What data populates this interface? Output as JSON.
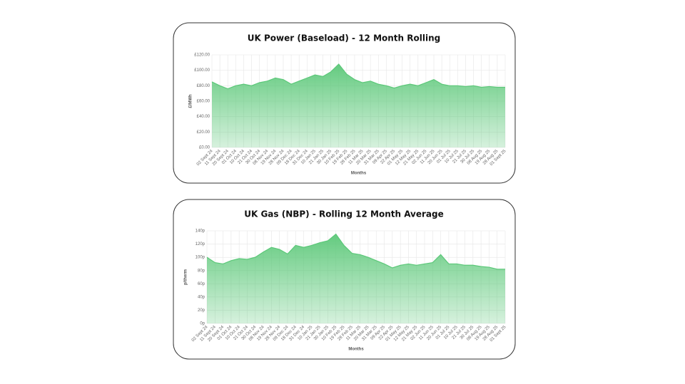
{
  "chart_data": [
    {
      "type": "area",
      "title": "UK Power (Baseload) - 12 Month Rolling",
      "x_label": "Months",
      "y_label": "£/MWh",
      "color": "#5cc879",
      "grid": true,
      "categories": [
        "02 Sept 24",
        "11 Sept 24",
        "20 Sept 24",
        "01 Oct 24",
        "10 Oct 24",
        "21 Oct 24",
        "30 Oct 24",
        "08 Nov 24",
        "19 Nov 24",
        "28 Nov 24",
        "09 Dec 24",
        "18 Dec 24",
        "31 Dec 24",
        "10 Jan 25",
        "21 Jan 25",
        "30 Jan 25",
        "10 Feb 25",
        "19 Feb 25",
        "28 Feb 25",
        "11 Mar 25",
        "20 Mar 25",
        "31 Mar 25",
        "09 Apr 25",
        "22 Apr 25",
        "01 May 25",
        "12 May 25",
        "21 May 25",
        "02 Jun 25",
        "11 Jun 25",
        "20 Jun 25",
        "01 Jul 25",
        "10 Jul 25",
        "21 Jul 25",
        "30 Jul 25",
        "08 Aug 25",
        "19 Aug 25",
        "28 Aug 25",
        "01 Sept 25"
      ],
      "values": [
        85,
        80,
        76,
        80,
        82,
        80,
        84,
        86,
        90,
        88,
        82,
        86,
        90,
        94,
        92,
        98,
        108,
        95,
        88,
        84,
        86,
        82,
        80,
        77,
        80,
        82,
        80,
        84,
        88,
        82,
        80,
        80,
        79,
        80,
        78,
        79,
        78,
        78
      ],
      "ylim": [
        0,
        120
      ],
      "yticks": [
        {
          "value": 0,
          "label": "£0.00"
        },
        {
          "value": 20,
          "label": "£20.00"
        },
        {
          "value": 40,
          "label": "£40.00"
        },
        {
          "value": 60,
          "label": "£60.00"
        },
        {
          "value": 80,
          "label": "£80.00"
        },
        {
          "value": 100,
          "label": "£100.00"
        },
        {
          "value": 120,
          "label": "£120.00"
        }
      ]
    },
    {
      "type": "area",
      "title": "UK Gas (NBP) - Rolling 12 Month Average",
      "x_label": "Months",
      "y_label": "p/therm",
      "color": "#5cc879",
      "grid": true,
      "categories": [
        "02 Sept 24",
        "11 Sept 24",
        "20 Sept 24",
        "01 Oct 24",
        "10 Oct 24",
        "21 Oct 24",
        "30 Oct 24",
        "08 Nov 24",
        "19 Nov 24",
        "28 Nov 24",
        "09 Dec 24",
        "18 Dec 24",
        "31 Dec 24",
        "10 Jan 25",
        "21 Jan 25",
        "30 Jan 25",
        "10 Feb 25",
        "19 Feb 25",
        "28 Feb 25",
        "11 Mar 25",
        "20 Mar 25",
        "31 Mar 25",
        "09 Apr 25",
        "22 Apr 25",
        "01 May 25",
        "12 May 25",
        "21 May 25",
        "02 Jun 25",
        "11 Jun 25",
        "20 Jun 25",
        "01 Jul 25",
        "10 Jul 25",
        "21 Jul 25",
        "30 Jul 25",
        "08 Aug 25",
        "19 Aug 25",
        "28 Aug 25",
        "01 Sept 25"
      ],
      "values": [
        100,
        92,
        90,
        95,
        98,
        97,
        100,
        108,
        115,
        112,
        105,
        118,
        115,
        118,
        122,
        125,
        135,
        118,
        106,
        104,
        100,
        95,
        90,
        84,
        88,
        90,
        88,
        90,
        92,
        104,
        90,
        90,
        88,
        88,
        86,
        85,
        82,
        82
      ],
      "ylim": [
        0,
        140
      ],
      "yticks": [
        {
          "value": 0,
          "label": "0p"
        },
        {
          "value": 20,
          "label": "20p"
        },
        {
          "value": 40,
          "label": "40p"
        },
        {
          "value": 60,
          "label": "60p"
        },
        {
          "value": 80,
          "label": "80p"
        },
        {
          "value": 100,
          "label": "100p"
        },
        {
          "value": 120,
          "label": "120p"
        },
        {
          "value": 140,
          "label": "140p"
        }
      ]
    }
  ]
}
